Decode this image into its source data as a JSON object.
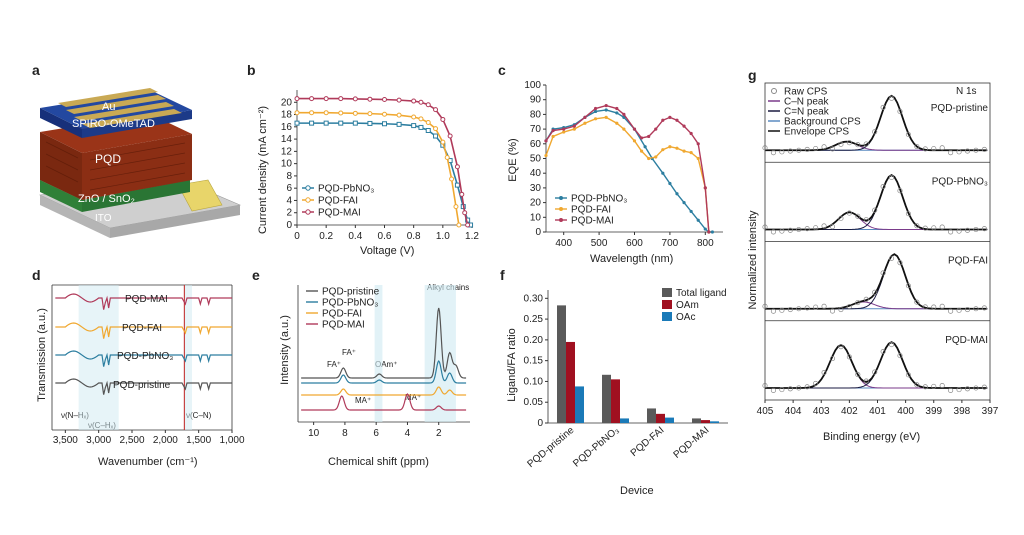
{
  "panels": {
    "a": {
      "label": "a",
      "layers": [
        "Au",
        "SPIRO-OMeTAD",
        "PQD",
        "ZnO / SnO₂",
        "ITO"
      ],
      "colors": {
        "au": "#c8a850",
        "spiro": "#1e3c8c",
        "pqd": "#8b2a15",
        "zno": "#3a9a45",
        "ito": "#c8c8c8",
        "contact": "#e8d56a"
      }
    },
    "b": {
      "label": "b"
    },
    "c": {
      "label": "c"
    },
    "d": {
      "label": "d"
    },
    "e": {
      "label": "e"
    },
    "f": {
      "label": "f"
    },
    "g": {
      "label": "g"
    }
  },
  "chart_data": [
    {
      "id": "b",
      "type": "line",
      "xlabel": "Voltage (V)",
      "ylabel": "Current density (mA cm⁻²)",
      "xlim": [
        0,
        1.2
      ],
      "ylim": [
        0,
        22
      ],
      "xticks": [
        "0",
        "0.2",
        "0.4",
        "0.6",
        "0.8",
        "1.0",
        "1.2"
      ],
      "yticks": [
        "0",
        "2",
        "4",
        "6",
        "8",
        "10",
        "12",
        "14",
        "16",
        "18",
        "20"
      ],
      "legend_position": "bottom-left",
      "series": [
        {
          "name": "PQD-PbNO₃",
          "color": "#2c7ea0",
          "marker": "square",
          "x": [
            0,
            0.1,
            0.2,
            0.3,
            0.4,
            0.5,
            0.6,
            0.7,
            0.8,
            0.85,
            0.9,
            0.95,
            1.0,
            1.05,
            1.1,
            1.14,
            1.17,
            1.19
          ],
          "y": [
            16.6,
            16.6,
            16.6,
            16.6,
            16.6,
            16.55,
            16.5,
            16.4,
            16.2,
            15.9,
            15.4,
            14.5,
            13.0,
            10.5,
            6.5,
            3.0,
            0.8,
            0
          ]
        },
        {
          "name": "PQD-FAI",
          "color": "#f0a830",
          "marker": "circle",
          "x": [
            0,
            0.1,
            0.2,
            0.3,
            0.4,
            0.5,
            0.6,
            0.7,
            0.8,
            0.85,
            0.9,
            0.95,
            1.0,
            1.03,
            1.06,
            1.09,
            1.11
          ],
          "y": [
            18.3,
            18.3,
            18.3,
            18.25,
            18.2,
            18.15,
            18.05,
            17.9,
            17.6,
            17.3,
            16.7,
            15.7,
            13.5,
            11.0,
            7.5,
            3.0,
            0
          ]
        },
        {
          "name": "PQD-MAI",
          "color": "#b03a5a",
          "marker": "circle",
          "x": [
            0,
            0.1,
            0.2,
            0.3,
            0.4,
            0.5,
            0.6,
            0.7,
            0.8,
            0.85,
            0.9,
            0.95,
            1.0,
            1.05,
            1.1,
            1.13,
            1.15,
            1.17
          ],
          "y": [
            20.6,
            20.6,
            20.6,
            20.6,
            20.55,
            20.5,
            20.45,
            20.35,
            20.2,
            20.0,
            19.6,
            18.8,
            17.2,
            14.5,
            9.5,
            5.0,
            2.0,
            0
          ]
        }
      ]
    },
    {
      "id": "c",
      "type": "line",
      "xlabel": "Wavelength (nm)",
      "ylabel": "EQE (%)",
      "xlim": [
        350,
        850
      ],
      "ylim": [
        0,
        100
      ],
      "xticks": [
        "400",
        "500",
        "600",
        "700",
        "800"
      ],
      "yticks": [
        "0",
        "10",
        "20",
        "30",
        "40",
        "50",
        "60",
        "70",
        "80",
        "90",
        "100"
      ],
      "legend_position": "bottom-left",
      "series": [
        {
          "name": "PQD-PbNO₃",
          "color": "#2c7ea0",
          "marker": "circle",
          "x": [
            350,
            370,
            400,
            430,
            460,
            490,
            520,
            550,
            570,
            600,
            630,
            650,
            680,
            700,
            720,
            740,
            760,
            780,
            800,
            810,
            820
          ],
          "y": [
            62,
            70,
            71,
            73,
            78,
            82,
            83,
            81,
            78,
            70,
            58,
            50,
            40,
            33,
            26,
            20,
            14,
            8,
            2,
            0,
            0
          ]
        },
        {
          "name": "PQD-FAI",
          "color": "#f0a830",
          "marker": "circle",
          "x": [
            350,
            370,
            400,
            430,
            460,
            490,
            520,
            550,
            570,
            600,
            620,
            640,
            660,
            680,
            700,
            720,
            740,
            760,
            780,
            800,
            810
          ],
          "y": [
            52,
            65,
            68,
            70,
            74,
            77,
            78,
            74,
            70,
            62,
            55,
            50,
            51,
            56,
            58,
            57,
            55,
            54,
            50,
            30,
            0
          ]
        },
        {
          "name": "PQD-MAI",
          "color": "#b03a5a",
          "marker": "circle",
          "x": [
            350,
            370,
            400,
            430,
            460,
            490,
            520,
            550,
            570,
            600,
            620,
            640,
            660,
            680,
            700,
            720,
            740,
            760,
            780,
            800,
            810
          ],
          "y": [
            62,
            69,
            70,
            72,
            78,
            84,
            86,
            84,
            80,
            70,
            64,
            65,
            70,
            76,
            78,
            76,
            72,
            67,
            60,
            30,
            0
          ]
        }
      ]
    },
    {
      "id": "d",
      "type": "line",
      "xlabel": "Wavenumber (cm⁻¹)",
      "ylabel": "Transmission (a.u.)",
      "xlim": [
        3700,
        1000
      ],
      "xticks": [
        "3,500",
        "3,000",
        "2,500",
        "2,000",
        "1,500",
        "1,000"
      ],
      "annotations": [
        "ν(N–Hₓ)",
        "ν(C–Hₓ)",
        "ν(C–N)"
      ],
      "series": [
        {
          "name": "PQD-MAI",
          "color": "#b03a5a"
        },
        {
          "name": "PQD-FAI",
          "color": "#f0a830"
        },
        {
          "name": "PQD-PbNO₃",
          "color": "#2c7ea0"
        },
        {
          "name": "PQD-pristine",
          "color": "#555555"
        }
      ]
    },
    {
      "id": "e",
      "type": "line",
      "xlabel": "Chemical shift (ppm)",
      "ylabel": "Intensity (a.u.)",
      "xlim": [
        11,
        0
      ],
      "xticks": [
        "10",
        "8",
        "6",
        "4",
        "2"
      ],
      "annotations": [
        "Alkyl chains",
        "FA⁺",
        "FA⁺",
        "OAm⁺",
        "MA⁺",
        "MA⁺"
      ],
      "series": [
        {
          "name": "PQD-pristine",
          "color": "#555555"
        },
        {
          "name": "PQD-PbNO₃",
          "color": "#2c7ea0"
        },
        {
          "name": "PQD-FAI",
          "color": "#f0a830"
        },
        {
          "name": "PQD-MAI",
          "color": "#b03a5a"
        }
      ]
    },
    {
      "id": "f",
      "type": "bar",
      "xlabel": "Device",
      "ylabel": "Ligand/FA ratio",
      "ylim": [
        0,
        0.32
      ],
      "yticks": [
        "0",
        "0.05",
        "0.10",
        "0.15",
        "0.20",
        "0.25",
        "0.30"
      ],
      "categories": [
        "PQD-pristine",
        "PQD-PbNO₃",
        "PQD-FAI",
        "PQD-MAI"
      ],
      "legend_position": "top-right",
      "series": [
        {
          "name": "Total ligand",
          "color": "#5a5a5a",
          "values": [
            0.283,
            0.116,
            0.035,
            0.011
          ]
        },
        {
          "name": "OAm",
          "color": "#a01020",
          "values": [
            0.195,
            0.105,
            0.022,
            0.007
          ]
        },
        {
          "name": "OAc",
          "color": "#1a7ab8",
          "values": [
            0.088,
            0.011,
            0.013,
            0.004
          ]
        }
      ]
    },
    {
      "id": "g",
      "type": "line",
      "xlabel": "Binding energy (eV)",
      "ylabel": "Normalized intensity",
      "xlim": [
        405,
        397
      ],
      "xticks": [
        "405",
        "404",
        "403",
        "402",
        "401",
        "400",
        "399",
        "398",
        "397"
      ],
      "corner_label": "N 1s",
      "legend": [
        "Raw CPS",
        "C–N peak",
        "C=N peak",
        "Background CPS",
        "Envelope CPS"
      ],
      "legend_colors": [
        "#888888",
        "#7a3a8a",
        "#1a1a40",
        "#5a8ac0",
        "#111111"
      ],
      "subpanels": [
        {
          "name": "PQD-pristine",
          "cn_center": 402.1,
          "cn_amp": 0.15,
          "ceqn_center": 400.5,
          "ceqn_amp": 0.95
        },
        {
          "name": "PQD-PbNO₃",
          "cn_center": 402.0,
          "cn_amp": 0.3,
          "ceqn_center": 400.5,
          "ceqn_amp": 0.95
        },
        {
          "name": "PQD-FAI",
          "cn_center": 401.5,
          "cn_amp": 0.12,
          "ceqn_center": 400.4,
          "ceqn_amp": 0.95
        },
        {
          "name": "PQD-MAI",
          "cn_center": 402.3,
          "cn_amp": 0.75,
          "ceqn_center": 400.5,
          "ceqn_amp": 0.8
        }
      ]
    }
  ]
}
